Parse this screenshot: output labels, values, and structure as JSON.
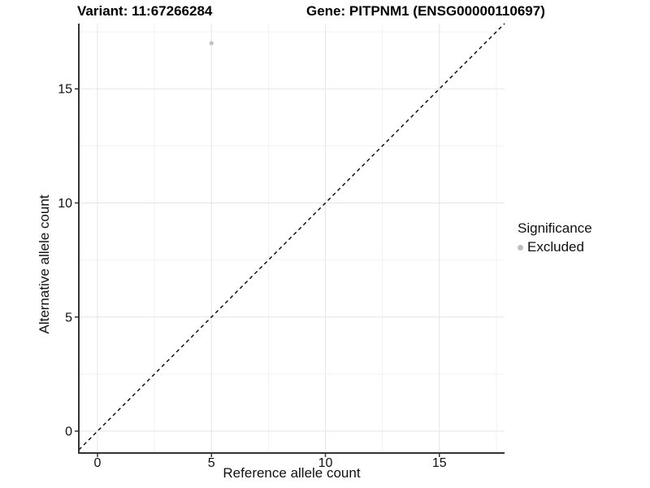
{
  "header": {
    "variant_title": "Variant: 11:67266284",
    "gene_title": "Gene: PITPNM1 (ENSG00000110697)"
  },
  "chart_data": {
    "type": "scatter",
    "title": "Variant: 11:67266284  /  Gene: PITPNM1 (ENSG00000110697)",
    "xlabel": "Reference allele count",
    "ylabel": "Alternative allele count",
    "xlim": [
      -0.82,
      17.86
    ],
    "ylim": [
      -0.96,
      17.86
    ],
    "x_ticks": [
      0,
      5,
      10,
      15
    ],
    "y_ticks": [
      0,
      5,
      10,
      15
    ],
    "x_minor_gridlines": [
      2.5,
      7.5,
      12.5,
      17.5
    ],
    "y_minor_gridlines": [
      2.5,
      7.5,
      12.5,
      17.5
    ],
    "grid": "major+minor",
    "legend_position": "right",
    "series": [
      {
        "name": "Excluded",
        "marker": "circle",
        "color": "#c2c2c2",
        "points": [
          {
            "x": 5,
            "y": 17
          }
        ]
      }
    ],
    "reference_line": {
      "type": "identity y=x",
      "style": "dashed",
      "color": "#000000"
    },
    "colors": {
      "grid_major": "#e7e7e7",
      "grid_minor": "#f2f2f2",
      "axis": "#343434",
      "tick_label": "#111111",
      "background": "#ffffff"
    }
  },
  "legend": {
    "title": "Significance",
    "items": [
      {
        "label": "Excluded",
        "color": "#bdbdbd",
        "marker": "circle"
      }
    ]
  }
}
